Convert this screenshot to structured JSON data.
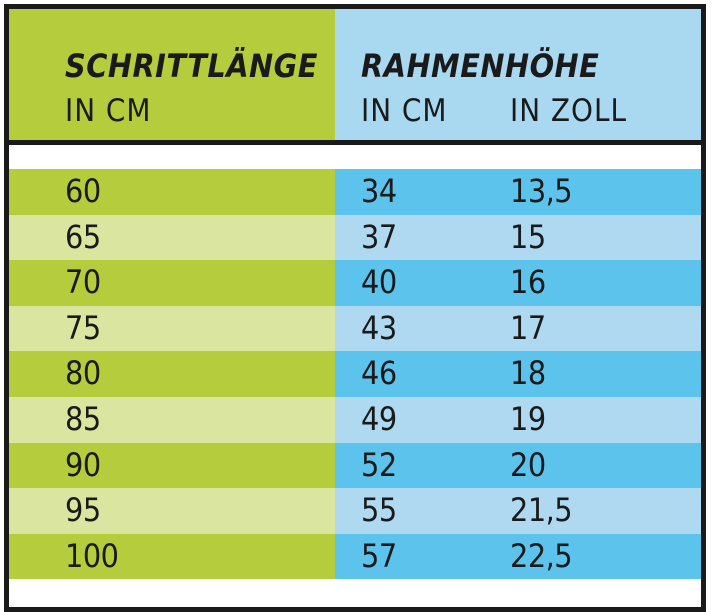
{
  "header": {
    "col1_title": "SCHRITTLÄNGE",
    "col1_unit": "IN CM",
    "col2_title": "RAHMENHÖHE",
    "col2_unit_cm": "IN CM",
    "col2_unit_zoll": "IN ZOLL"
  },
  "rows": [
    {
      "schrittlaenge": "60",
      "rahmen_cm": "34",
      "rahmen_zoll": "13,5"
    },
    {
      "schrittlaenge": "65",
      "rahmen_cm": "37",
      "rahmen_zoll": "15"
    },
    {
      "schrittlaenge": "70",
      "rahmen_cm": "40",
      "rahmen_zoll": "16"
    },
    {
      "schrittlaenge": "75",
      "rahmen_cm": "43",
      "rahmen_zoll": "17"
    },
    {
      "schrittlaenge": "80",
      "rahmen_cm": "46",
      "rahmen_zoll": "18"
    },
    {
      "schrittlaenge": "85",
      "rahmen_cm": "49",
      "rahmen_zoll": "19"
    },
    {
      "schrittlaenge": "90",
      "rahmen_cm": "52",
      "rahmen_zoll": "20"
    },
    {
      "schrittlaenge": "95",
      "rahmen_cm": "55",
      "rahmen_zoll": "21,5"
    },
    {
      "schrittlaenge": "100",
      "rahmen_cm": "57",
      "rahmen_zoll": "22,5"
    }
  ],
  "colors": {
    "green_dark": "#b5cc3c",
    "green_light": "#dae69f",
    "blue_dark": "#5bc3ec",
    "blue_light": "#aed9f1",
    "header_blue": "#a9d8f1",
    "border": "#1a1a1a"
  }
}
